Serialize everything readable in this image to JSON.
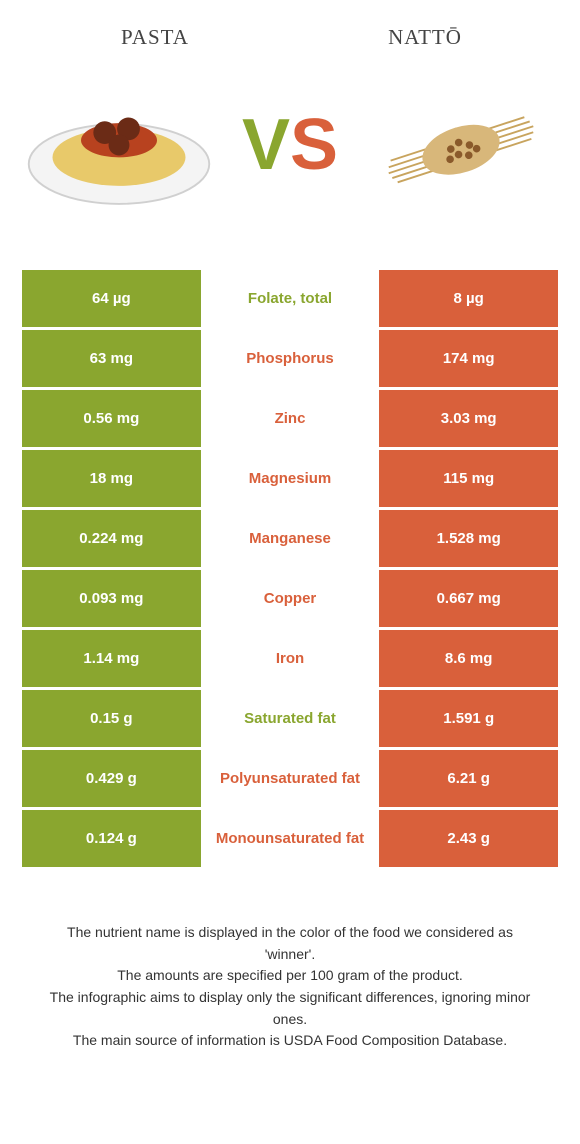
{
  "header": {
    "left_title": "pasta",
    "right_title": "nattō",
    "vs_left": "V",
    "vs_right": "S"
  },
  "colors": {
    "left": "#8aa62f",
    "right": "#d9603b",
    "bg": "#ffffff"
  },
  "table": {
    "rows": [
      {
        "left": "64 µg",
        "label": "Folate, total",
        "right": "8 µg",
        "winner": "green"
      },
      {
        "left": "63 mg",
        "label": "Phosphorus",
        "right": "174 mg",
        "winner": "orange"
      },
      {
        "left": "0.56 mg",
        "label": "Zinc",
        "right": "3.03 mg",
        "winner": "orange"
      },
      {
        "left": "18 mg",
        "label": "Magnesium",
        "right": "115 mg",
        "winner": "orange"
      },
      {
        "left": "0.224 mg",
        "label": "Manganese",
        "right": "1.528 mg",
        "winner": "orange"
      },
      {
        "left": "0.093 mg",
        "label": "Copper",
        "right": "0.667 mg",
        "winner": "orange"
      },
      {
        "left": "1.14 mg",
        "label": "Iron",
        "right": "8.6 mg",
        "winner": "orange"
      },
      {
        "left": "0.15 g",
        "label": "Saturated fat",
        "right": "1.591 g",
        "winner": "green"
      },
      {
        "left": "0.429 g",
        "label": "Polyunsaturated fat",
        "right": "6.21 g",
        "winner": "orange"
      },
      {
        "left": "0.124 g",
        "label": "Monounsaturated fat",
        "right": "2.43 g",
        "winner": "orange"
      }
    ]
  },
  "footnotes": {
    "l1": "The nutrient name is displayed in the color of the food we considered as 'winner'.",
    "l2": "The amounts are specified per 100 gram of the product.",
    "l3": "The infographic aims to display only the significant differences, ignoring minor ones.",
    "l4": "The main source of information is USDA Food Composition Database."
  }
}
